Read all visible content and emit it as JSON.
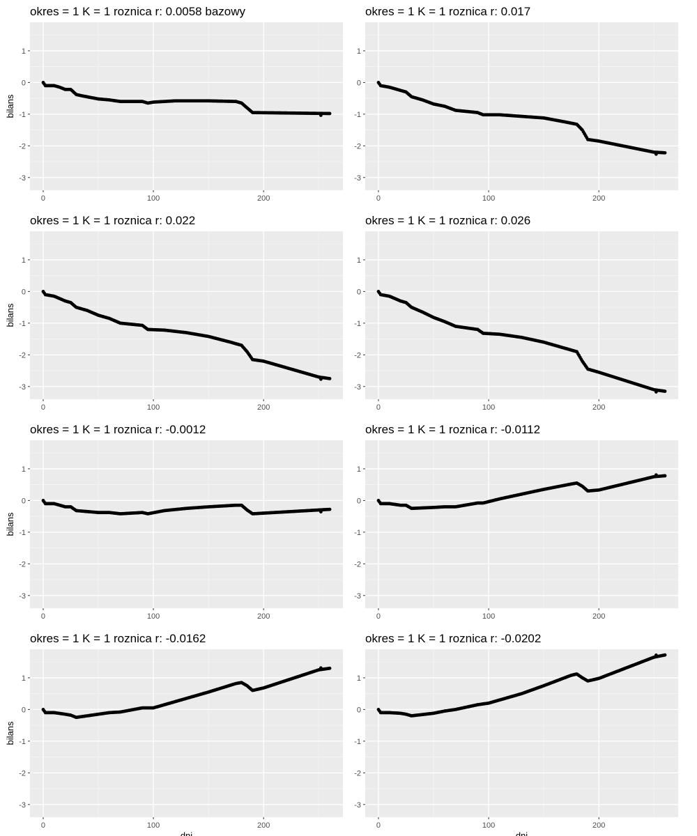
{
  "charts": [
    {
      "type": "scatter",
      "title": "okres = 1 K = 1 roznica r: 0.0058 bazowy",
      "ylabel": "bilans",
      "xlabel": "",
      "xlim": [
        -12,
        272
      ],
      "ylim": [
        -3.4,
        1.9
      ],
      "xticks": [
        0,
        100,
        200
      ],
      "yticks": [
        -3,
        -2,
        -1,
        0,
        1
      ],
      "grid": true,
      "keypoints": [
        [
          0,
          0
        ],
        [
          2,
          -0.1
        ],
        [
          10,
          -0.1
        ],
        [
          15,
          -0.15
        ],
        [
          20,
          -0.22
        ],
        [
          25,
          -0.22
        ],
        [
          30,
          -0.38
        ],
        [
          35,
          -0.42
        ],
        [
          50,
          -0.52
        ],
        [
          60,
          -0.55
        ],
        [
          70,
          -0.6
        ],
        [
          90,
          -0.6
        ],
        [
          95,
          -0.65
        ],
        [
          100,
          -0.62
        ],
        [
          110,
          -0.6
        ],
        [
          120,
          -0.58
        ],
        [
          150,
          -0.58
        ],
        [
          175,
          -0.6
        ],
        [
          180,
          -0.65
        ],
        [
          185,
          -0.8
        ],
        [
          190,
          -0.95
        ],
        [
          260,
          -0.98
        ]
      ]
    },
    {
      "type": "scatter",
      "title": "okres = 1 K = 1 roznica r: 0.017",
      "ylabel": "",
      "xlabel": "",
      "xlim": [
        -12,
        272
      ],
      "ylim": [
        -3.4,
        1.9
      ],
      "xticks": [
        0,
        100,
        200
      ],
      "yticks": [
        -3,
        -2,
        -1,
        0,
        1
      ],
      "grid": true,
      "keypoints": [
        [
          0,
          0
        ],
        [
          2,
          -0.1
        ],
        [
          10,
          -0.15
        ],
        [
          20,
          -0.25
        ],
        [
          25,
          -0.3
        ],
        [
          30,
          -0.45
        ],
        [
          40,
          -0.55
        ],
        [
          50,
          -0.68
        ],
        [
          60,
          -0.75
        ],
        [
          70,
          -0.88
        ],
        [
          90,
          -0.95
        ],
        [
          95,
          -1.02
        ],
        [
          110,
          -1.02
        ],
        [
          130,
          -1.07
        ],
        [
          150,
          -1.12
        ],
        [
          170,
          -1.25
        ],
        [
          180,
          -1.32
        ],
        [
          185,
          -1.5
        ],
        [
          190,
          -1.8
        ],
        [
          200,
          -1.85
        ],
        [
          250,
          -2.2
        ],
        [
          260,
          -2.22
        ]
      ]
    },
    {
      "type": "scatter",
      "title": "okres = 1 K = 1 roznica r: 0.022",
      "ylabel": "bilans",
      "xlabel": "",
      "xlim": [
        -12,
        272
      ],
      "ylim": [
        -3.4,
        1.9
      ],
      "xticks": [
        0,
        100,
        200
      ],
      "yticks": [
        -3,
        -2,
        -1,
        0,
        1
      ],
      "grid": true,
      "keypoints": [
        [
          0,
          0
        ],
        [
          2,
          -0.1
        ],
        [
          10,
          -0.15
        ],
        [
          20,
          -0.3
        ],
        [
          25,
          -0.35
        ],
        [
          30,
          -0.5
        ],
        [
          40,
          -0.6
        ],
        [
          50,
          -0.75
        ],
        [
          60,
          -0.85
        ],
        [
          70,
          -1.0
        ],
        [
          90,
          -1.07
        ],
        [
          95,
          -1.2
        ],
        [
          110,
          -1.22
        ],
        [
          130,
          -1.3
        ],
        [
          150,
          -1.42
        ],
        [
          170,
          -1.6
        ],
        [
          180,
          -1.7
        ],
        [
          185,
          -1.9
        ],
        [
          190,
          -2.15
        ],
        [
          200,
          -2.2
        ],
        [
          250,
          -2.7
        ],
        [
          260,
          -2.75
        ]
      ]
    },
    {
      "type": "scatter",
      "title": "okres = 1 K = 1 roznica r: 0.026",
      "ylabel": "",
      "xlabel": "",
      "xlim": [
        -12,
        272
      ],
      "ylim": [
        -3.4,
        1.9
      ],
      "xticks": [
        0,
        100,
        200
      ],
      "yticks": [
        -3,
        -2,
        -1,
        0,
        1
      ],
      "grid": true,
      "keypoints": [
        [
          0,
          0
        ],
        [
          2,
          -0.1
        ],
        [
          10,
          -0.15
        ],
        [
          20,
          -0.3
        ],
        [
          25,
          -0.35
        ],
        [
          30,
          -0.5
        ],
        [
          40,
          -0.65
        ],
        [
          50,
          -0.82
        ],
        [
          60,
          -0.95
        ],
        [
          70,
          -1.1
        ],
        [
          90,
          -1.2
        ],
        [
          95,
          -1.32
        ],
        [
          110,
          -1.35
        ],
        [
          130,
          -1.45
        ],
        [
          150,
          -1.6
        ],
        [
          170,
          -1.8
        ],
        [
          180,
          -1.9
        ],
        [
          185,
          -2.2
        ],
        [
          190,
          -2.45
        ],
        [
          200,
          -2.55
        ],
        [
          250,
          -3.1
        ],
        [
          260,
          -3.15
        ]
      ]
    },
    {
      "type": "scatter",
      "title": "okres = 1 K = 1 roznica r: -0.0012",
      "ylabel": "bilans",
      "xlabel": "",
      "xlim": [
        -12,
        272
      ],
      "ylim": [
        -3.4,
        1.9
      ],
      "xticks": [
        0,
        100,
        200
      ],
      "yticks": [
        -3,
        -2,
        -1,
        0,
        1
      ],
      "grid": true,
      "keypoints": [
        [
          0,
          0
        ],
        [
          2,
          -0.1
        ],
        [
          10,
          -0.1
        ],
        [
          20,
          -0.2
        ],
        [
          25,
          -0.2
        ],
        [
          30,
          -0.32
        ],
        [
          50,
          -0.38
        ],
        [
          60,
          -0.38
        ],
        [
          70,
          -0.42
        ],
        [
          90,
          -0.38
        ],
        [
          95,
          -0.42
        ],
        [
          110,
          -0.32
        ],
        [
          130,
          -0.25
        ],
        [
          150,
          -0.2
        ],
        [
          175,
          -0.15
        ],
        [
          180,
          -0.15
        ],
        [
          185,
          -0.3
        ],
        [
          190,
          -0.42
        ],
        [
          200,
          -0.4
        ],
        [
          250,
          -0.3
        ],
        [
          260,
          -0.28
        ]
      ]
    },
    {
      "type": "scatter",
      "title": "okres = 1 K = 1 roznica r: -0.0112",
      "ylabel": "",
      "xlabel": "",
      "xlim": [
        -12,
        272
      ],
      "ylim": [
        -3.4,
        1.9
      ],
      "xticks": [
        0,
        100,
        200
      ],
      "yticks": [
        -3,
        -2,
        -1,
        0,
        1
      ],
      "grid": true,
      "keypoints": [
        [
          0,
          0
        ],
        [
          2,
          -0.1
        ],
        [
          10,
          -0.1
        ],
        [
          20,
          -0.15
        ],
        [
          25,
          -0.15
        ],
        [
          30,
          -0.25
        ],
        [
          50,
          -0.22
        ],
        [
          60,
          -0.2
        ],
        [
          70,
          -0.2
        ],
        [
          90,
          -0.08
        ],
        [
          95,
          -0.08
        ],
        [
          110,
          0.05
        ],
        [
          130,
          0.2
        ],
        [
          150,
          0.35
        ],
        [
          175,
          0.52
        ],
        [
          180,
          0.55
        ],
        [
          185,
          0.45
        ],
        [
          190,
          0.3
        ],
        [
          200,
          0.33
        ],
        [
          250,
          0.75
        ],
        [
          260,
          0.78
        ]
      ]
    },
    {
      "type": "scatter",
      "title": "okres = 1 K = 1 roznica r: -0.0162",
      "ylabel": "bilans",
      "xlabel": "dni",
      "xlim": [
        -12,
        272
      ],
      "ylim": [
        -3.4,
        1.9
      ],
      "xticks": [
        0,
        100,
        200
      ],
      "yticks": [
        -3,
        -2,
        -1,
        0,
        1
      ],
      "grid": true,
      "keypoints": [
        [
          0,
          0
        ],
        [
          2,
          -0.1
        ],
        [
          10,
          -0.1
        ],
        [
          20,
          -0.15
        ],
        [
          25,
          -0.18
        ],
        [
          30,
          -0.25
        ],
        [
          50,
          -0.15
        ],
        [
          60,
          -0.1
        ],
        [
          70,
          -0.08
        ],
        [
          90,
          0.05
        ],
        [
          100,
          0.05
        ],
        [
          110,
          0.15
        ],
        [
          130,
          0.35
        ],
        [
          150,
          0.55
        ],
        [
          175,
          0.82
        ],
        [
          180,
          0.85
        ],
        [
          185,
          0.75
        ],
        [
          190,
          0.6
        ],
        [
          200,
          0.68
        ],
        [
          250,
          1.25
        ],
        [
          260,
          1.3
        ]
      ]
    },
    {
      "type": "scatter",
      "title": "okres = 1 K = 1 roznica r: -0.0202",
      "ylabel": "",
      "xlabel": "dni",
      "xlim": [
        -12,
        272
      ],
      "ylim": [
        -3.4,
        1.9
      ],
      "xticks": [
        0,
        100,
        200
      ],
      "yticks": [
        -3,
        -2,
        -1,
        0,
        1
      ],
      "grid": true,
      "keypoints": [
        [
          0,
          0
        ],
        [
          2,
          -0.1
        ],
        [
          10,
          -0.1
        ],
        [
          20,
          -0.12
        ],
        [
          25,
          -0.15
        ],
        [
          30,
          -0.2
        ],
        [
          50,
          -0.12
        ],
        [
          60,
          -0.05
        ],
        [
          70,
          0.0
        ],
        [
          90,
          0.15
        ],
        [
          100,
          0.2
        ],
        [
          110,
          0.3
        ],
        [
          130,
          0.5
        ],
        [
          150,
          0.75
        ],
        [
          175,
          1.08
        ],
        [
          180,
          1.12
        ],
        [
          185,
          1.0
        ],
        [
          190,
          0.9
        ],
        [
          200,
          0.98
        ],
        [
          250,
          1.65
        ],
        [
          260,
          1.72
        ]
      ]
    }
  ]
}
